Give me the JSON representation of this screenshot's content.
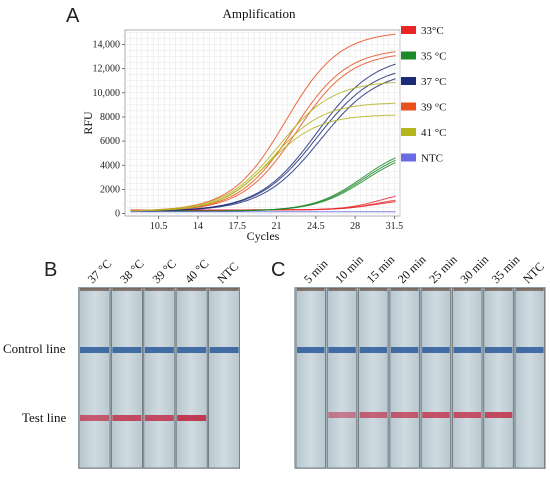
{
  "panel_a": {
    "letter": "A",
    "chart_data": {
      "type": "line",
      "title": "Amplification",
      "xlabel": "Cycles",
      "ylabel": "RFU",
      "xlim": [
        7.5,
        32
      ],
      "ylim": [
        -200,
        15200
      ],
      "x_ticks": [
        10.5,
        14,
        17.5,
        21,
        24.5,
        28,
        31.5
      ],
      "x_tick_labels": [
        "10.5",
        "14",
        "17.5",
        "21",
        "24.5",
        "28",
        "31.5"
      ],
      "y_ticks": [
        0,
        2000,
        4000,
        6000,
        8000,
        10000,
        12000,
        14000
      ],
      "y_tick_labels": [
        "0",
        "2000",
        "4000",
        "6000",
        "8000",
        "10,000",
        "12,000",
        "14,000"
      ],
      "grid": true,
      "legend_position": "right",
      "legend": [
        {
          "label": "33°C",
          "color": "#e8262a"
        },
        {
          "label": "35 °C",
          "color": "#1d8a2a"
        },
        {
          "label": "37 °C",
          "color": "#1c2a7a"
        },
        {
          "label": "39 °C",
          "color": "#e8501e"
        },
        {
          "label": "41 °C",
          "color": "#b4b41e"
        },
        {
          "label": "NTC",
          "color": "#6a6ae6"
        }
      ],
      "curves": [
        {
          "group": "33°C",
          "color": "#e8262a",
          "baseline": 300,
          "plateau": 1600,
          "midpoint": 30.2,
          "slope": 1.6
        },
        {
          "group": "33°C",
          "color": "#e8262a",
          "baseline": 300,
          "plateau": 1100,
          "midpoint": 30.0,
          "slope": 1.6
        },
        {
          "group": "33°C",
          "color": "#e8262a",
          "baseline": 300,
          "plateau": 900,
          "midpoint": 29.8,
          "slope": 1.6
        },
        {
          "group": "35 °C",
          "color": "#1d8a2a",
          "baseline": 200,
          "plateau": 5600,
          "midpoint": 28.7,
          "slope": 2.2
        },
        {
          "group": "35 °C",
          "color": "#1d8a2a",
          "baseline": 200,
          "plateau": 5400,
          "midpoint": 28.8,
          "slope": 2.2
        },
        {
          "group": "35 °C",
          "color": "#1d8a2a",
          "baseline": 200,
          "plateau": 5200,
          "midpoint": 28.9,
          "slope": 2.2
        },
        {
          "group": "37 °C",
          "color": "#1c2a7a",
          "baseline": 200,
          "plateau": 13000,
          "midpoint": 24.6,
          "slope": 2.6
        },
        {
          "group": "37 °C",
          "color": "#1c2a7a",
          "baseline": 200,
          "plateau": 12200,
          "midpoint": 24.6,
          "slope": 2.6
        },
        {
          "group": "37 °C",
          "color": "#1c2a7a",
          "baseline": 200,
          "plateau": 11800,
          "midpoint": 24.9,
          "slope": 2.6
        },
        {
          "group": "39 °C",
          "color": "#e8501e",
          "baseline": 200,
          "plateau": 14900,
          "midpoint": 21.8,
          "slope": 2.4
        },
        {
          "group": "39 °C",
          "color": "#e8501e",
          "baseline": 200,
          "plateau": 13500,
          "midpoint": 22.5,
          "slope": 2.4
        },
        {
          "group": "39 °C",
          "color": "#e8501e",
          "baseline": 200,
          "plateau": 13200,
          "midpoint": 22.8,
          "slope": 2.4
        },
        {
          "group": "41 °C",
          "color": "#b4b41e",
          "baseline": 200,
          "plateau": 10800,
          "midpoint": 21.2,
          "slope": 2.4
        },
        {
          "group": "41 °C",
          "color": "#b4b41e",
          "baseline": 200,
          "plateau": 9000,
          "midpoint": 20.7,
          "slope": 2.2
        },
        {
          "group": "41 °C",
          "color": "#b4b41e",
          "baseline": 200,
          "plateau": 8000,
          "midpoint": 20.3,
          "slope": 2.2
        },
        {
          "group": "NTC",
          "color": "#6a6ae6",
          "baseline": 150,
          "plateau": 0,
          "midpoint": 30,
          "slope": 2
        }
      ]
    }
  },
  "panel_b": {
    "letter": "B",
    "columns": [
      "37 °C",
      "38 °C",
      "39 °C",
      "40 °C",
      "NTC"
    ],
    "control_line_label": "Control line",
    "test_line_label": "Test line",
    "strips": [
      {
        "control": 1,
        "test": 0.75
      },
      {
        "control": 1,
        "test": 0.85
      },
      {
        "control": 1,
        "test": 0.85
      },
      {
        "control": 1,
        "test": 0.95
      },
      {
        "control": 1,
        "test": 0
      }
    ],
    "colors": {
      "control": "#2a5a9a",
      "test": "#c0304a",
      "strip": "#c9d6dd"
    }
  },
  "panel_c": {
    "letter": "C",
    "columns": [
      "5 min",
      "10 min",
      "15 min",
      "20 min",
      "25 min",
      "30 min",
      "35 min",
      "NTC"
    ],
    "strips": [
      {
        "control": 1,
        "test": 0
      },
      {
        "control": 1,
        "test": 0.55
      },
      {
        "control": 1,
        "test": 0.7
      },
      {
        "control": 1,
        "test": 0.75
      },
      {
        "control": 1,
        "test": 0.8
      },
      {
        "control": 1,
        "test": 0.8
      },
      {
        "control": 1,
        "test": 0.85
      },
      {
        "control": 1,
        "test": 0
      }
    ]
  }
}
